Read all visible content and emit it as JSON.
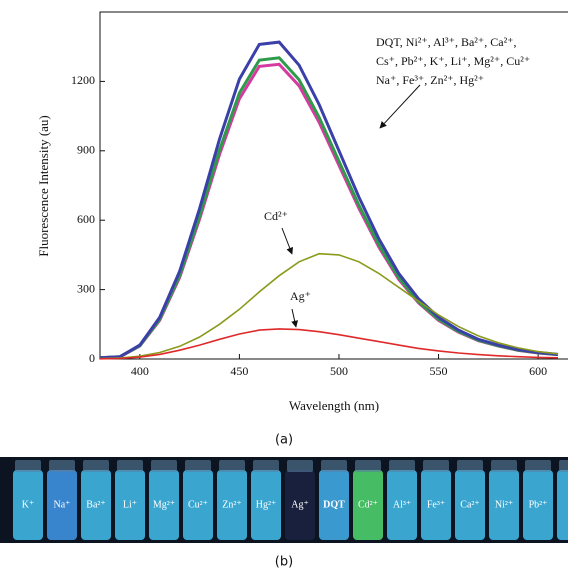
{
  "chart_data": {
    "type": "line",
    "x_label": "Wavelength (nm)",
    "y_label": "Fluorescence Intensity (au)",
    "x": [
      380,
      390,
      400,
      410,
      420,
      430,
      440,
      450,
      460,
      470,
      480,
      490,
      500,
      510,
      520,
      530,
      540,
      550,
      560,
      570,
      580,
      590,
      600,
      610
    ],
    "series": [
      {
        "color": "#d63aa0",
        "values": [
          5,
          9,
          56,
          167,
          353,
          605,
          884,
          1125,
          1265,
          1274,
          1181,
          1023,
          837,
          651,
          484,
          344,
          242,
          167,
          116,
          79,
          56,
          37,
          26,
          19
        ]
      },
      {
        "color": "#2e9a4a",
        "values": [
          5,
          10,
          57,
          171,
          361,
          618,
          903,
          1150,
          1292,
          1302,
          1207,
          1045,
          855,
          665,
          494,
          352,
          247,
          171,
          119,
          81,
          57,
          38,
          27,
          19
        ]
      },
      {
        "color": "#3b3fa8",
        "values": [
          5,
          10,
          60,
          180,
          380,
          650,
          950,
          1210,
          1360,
          1370,
          1270,
          1100,
          900,
          700,
          520,
          370,
          260,
          180,
          125,
          85,
          60,
          40,
          28,
          20
        ]
      },
      {
        "color": "#8a9a1c",
        "values": [
          2,
          4,
          12,
          28,
          55,
          95,
          150,
          215,
          290,
          360,
          420,
          455,
          450,
          420,
          370,
          310,
          250,
          190,
          140,
          100,
          70,
          48,
          32,
          22
        ]
      },
      {
        "color": "#e02a2a",
        "values": [
          1,
          2,
          8,
          20,
          38,
          60,
          85,
          108,
          125,
          130,
          127,
          118,
          105,
          90,
          75,
          60,
          46,
          35,
          26,
          19,
          14,
          10,
          7,
          5
        ]
      }
    ],
    "xlim": [
      380,
      615
    ],
    "xticks": [
      400,
      450,
      500,
      550,
      600
    ],
    "ylim": [
      0,
      1500
    ],
    "yticks": [
      0,
      300,
      600,
      900,
      1200
    ],
    "annotations": [
      {
        "lines": [
          "DQT, Ni²⁺, Al³⁺, Ba²⁺, Ca²⁺,",
          "Cs⁺, Pb²⁺, K⁺, Li⁺, Mg²⁺, Cu²⁺",
          "Na⁺, Fe³⁺, Zn²⁺, Hg²⁺"
        ]
      },
      {
        "lines": [
          "Cd²⁺"
        ]
      },
      {
        "lines": [
          "Ag⁺"
        ]
      }
    ],
    "caption": "(a)"
  },
  "photo": {
    "caption": "(b)",
    "vials": [
      {
        "label": "K⁺",
        "color": "#3fb3e0"
      },
      {
        "label": "Na⁺",
        "color": "#3e8fdc"
      },
      {
        "label": "Ba²⁺",
        "color": "#3fb3e0"
      },
      {
        "label": "Li⁺",
        "color": "#3fb3e0"
      },
      {
        "label": "Mg²⁺",
        "color": "#3fb3e0"
      },
      {
        "label": "Cu²⁺",
        "color": "#3fb3e0"
      },
      {
        "label": "Zn²⁺",
        "color": "#3fb3e0"
      },
      {
        "label": "Hg²⁺",
        "color": "#3fb3e0"
      },
      {
        "label": "Ag⁺",
        "color": "#1a2240"
      },
      {
        "label": "DQT",
        "color": "#3fa6de"
      },
      {
        "label": "Cd²⁺",
        "color": "#4ccc6a"
      },
      {
        "label": "Al³⁺",
        "color": "#3fb3e0"
      },
      {
        "label": "Fe³⁺",
        "color": "#3fb3e0"
      },
      {
        "label": "Ca²⁺",
        "color": "#3fb3e0"
      },
      {
        "label": "Ni²⁺",
        "color": "#3fb3e0"
      },
      {
        "label": "Pb²⁺",
        "color": "#3fb3e0"
      },
      {
        "label": "C",
        "color": "#3fb3e0"
      }
    ]
  }
}
